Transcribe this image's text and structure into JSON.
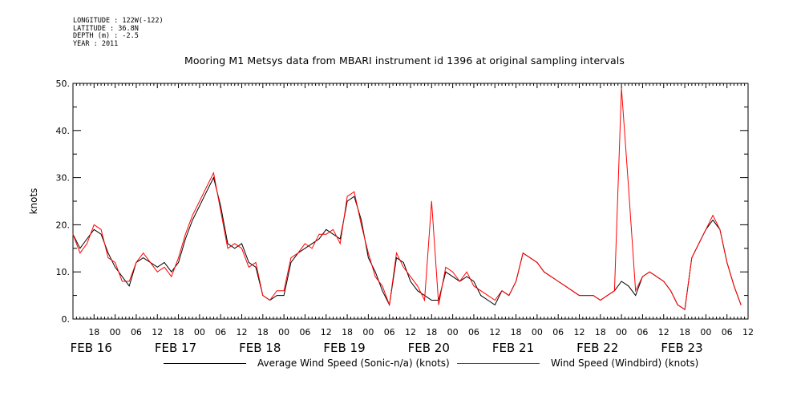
{
  "meta": {
    "longitude": "LONGITUDE : 122W(-122)",
    "latitude": "LATITUDE : 36.8N",
    "depth": "DEPTH (m) : -2.5",
    "year": "YEAR : 2011"
  },
  "chart_data": {
    "type": "line",
    "title": "Mooring M1 Metsys data from MBARI instrument id 1396 at original sampling intervals",
    "ylabel": "knots",
    "ylim": [
      0,
      50
    ],
    "yticks": [
      "0.",
      "10.",
      "20.",
      "30.",
      "40.",
      "50."
    ],
    "x_range_hours_since_feb16_00": [
      -12,
      180
    ],
    "hour_tick_labels": [
      "18",
      "00",
      "06",
      "12",
      "18",
      "00",
      "06",
      "12",
      "18",
      "00",
      "06",
      "12",
      "18",
      "00",
      "06",
      "12",
      "18",
      "00",
      "06",
      "12",
      "18",
      "00",
      "06",
      "12",
      "18",
      "00",
      "06",
      "12",
      "18",
      "00",
      "06",
      "12"
    ],
    "day_labels": [
      "FEB 16",
      "FEB 17",
      "FEB 18",
      "FEB 19",
      "FEB 20",
      "FEB 21",
      "FEB 22",
      "FEB 23"
    ],
    "grid": false,
    "legend_position": "bottom",
    "series": [
      {
        "name": "Average Wind Speed (Sonic-n/a) (knots)",
        "color": "#000000",
        "x": [
          -12,
          -10,
          -8,
          -6,
          -4,
          -2,
          0,
          2,
          4,
          6,
          8,
          10,
          12,
          14,
          16,
          18,
          20,
          22,
          24,
          26,
          28,
          30,
          32,
          34,
          36,
          38,
          40,
          42,
          44,
          46,
          48,
          50,
          52,
          54,
          56,
          58,
          60,
          62,
          64,
          66,
          68,
          70,
          72,
          74,
          76,
          78,
          80,
          82,
          84,
          86,
          88,
          90,
          92,
          94,
          96,
          98,
          100,
          102,
          104,
          106,
          108,
          110,
          112,
          114,
          116,
          118,
          120,
          122,
          124,
          126,
          128,
          130,
          132,
          134,
          136,
          138,
          140,
          142,
          144,
          146,
          148,
          150,
          152,
          154,
          156,
          158,
          160,
          162,
          164,
          166,
          168,
          170,
          172,
          174,
          176,
          178
        ],
        "values": [
          18,
          15,
          17,
          19,
          18,
          14,
          11,
          9,
          7,
          12,
          13,
          12,
          11,
          12,
          10,
          12,
          17,
          21,
          24,
          27,
          30,
          24,
          16,
          15,
          16,
          12,
          11,
          5,
          4,
          5,
          5,
          12,
          14,
          15,
          16,
          17,
          19,
          18,
          17,
          25,
          26,
          21,
          13,
          10,
          6,
          3,
          13,
          12,
          8,
          6,
          5,
          4,
          4,
          10,
          9,
          8,
          9,
          8,
          5,
          4,
          3,
          6,
          5,
          8,
          14,
          13,
          12,
          10,
          9,
          8,
          7,
          6,
          5,
          5,
          5,
          4,
          5,
          6,
          8,
          7,
          5,
          9,
          10,
          9,
          8,
          6,
          3,
          2,
          13,
          16,
          19,
          21,
          19,
          12,
          7,
          3
        ]
      },
      {
        "name": "Wind Speed (Windbird) (knots)",
        "color": "#ff0000",
        "x": [
          -12,
          -10,
          -8,
          -6,
          -4,
          -2,
          0,
          2,
          4,
          6,
          8,
          10,
          12,
          14,
          16,
          18,
          20,
          22,
          24,
          26,
          28,
          30,
          32,
          34,
          36,
          38,
          40,
          42,
          44,
          46,
          48,
          50,
          52,
          54,
          56,
          58,
          60,
          62,
          64,
          66,
          68,
          70,
          72,
          74,
          76,
          78,
          80,
          82,
          84,
          86,
          88,
          90,
          92,
          94,
          96,
          98,
          100,
          102,
          104,
          106,
          108,
          110,
          112,
          114,
          116,
          118,
          120,
          122,
          124,
          126,
          128,
          130,
          132,
          134,
          136,
          138,
          140,
          142,
          144,
          146,
          148,
          150,
          152,
          154,
          156,
          158,
          160,
          162,
          164,
          166,
          168,
          170,
          172,
          174,
          176,
          178
        ],
        "values": [
          18,
          14,
          16,
          20,
          19,
          13,
          12,
          8,
          8,
          12,
          14,
          12,
          10,
          11,
          9,
          13,
          18,
          22,
          25,
          28,
          31,
          23,
          15,
          16,
          15,
          11,
          12,
          5,
          4,
          6,
          6,
          13,
          14,
          16,
          15,
          18,
          18,
          19,
          16,
          26,
          27,
          20,
          14,
          9,
          7,
          3,
          14,
          11,
          9,
          7,
          4,
          25,
          3,
          11,
          10,
          8,
          10,
          7,
          6,
          5,
          4,
          6,
          5,
          8,
          14,
          13,
          12,
          10,
          9,
          8,
          7,
          6,
          5,
          5,
          5,
          4,
          5,
          6,
          49,
          28,
          6,
          9,
          10,
          9,
          8,
          6,
          3,
          2,
          13,
          16,
          19,
          22,
          19,
          12,
          7,
          3
        ]
      }
    ]
  }
}
